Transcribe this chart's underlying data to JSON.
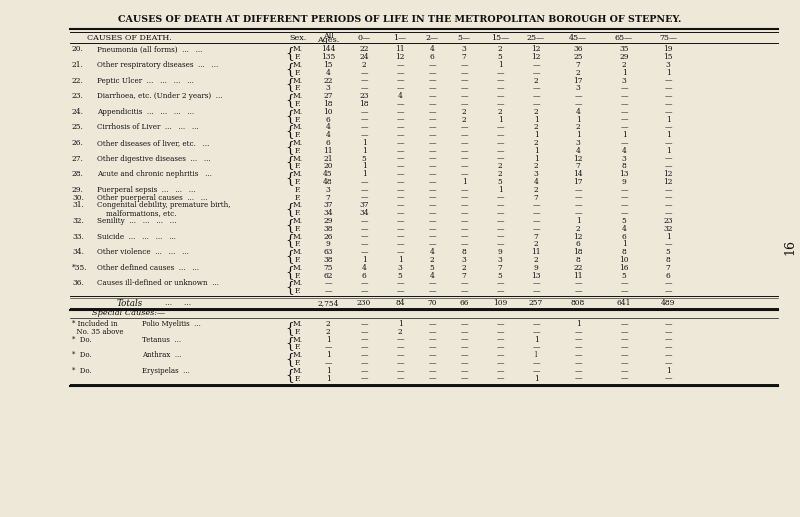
{
  "title": "CAUSES OF DEATH AT DIFFERENT PERIODS OF LIFE IN THE METROPOLITAN BOROUGH OF STEPNEY.",
  "bg_color": "#ede8d8",
  "text_color": "#111111",
  "page_num": "16",
  "rows": [
    {
      "num": "20.",
      "cause": "Pneumonia (all forms)  ...   ...",
      "brace": true,
      "sex": "M.",
      "vals": [
        "144",
        "22",
        "11",
        "4",
        "3",
        "2",
        "12",
        "36",
        "35",
        "19"
      ]
    },
    {
      "num": "",
      "cause": "",
      "brace": false,
      "sex": "F.",
      "vals": [
        "135",
        "24",
        "12",
        "6",
        "7",
        "5",
        "12",
        "25",
        "29",
        "15"
      ]
    },
    {
      "num": "21.",
      "cause": "Other respiratory diseases  ...   ...",
      "brace": true,
      "sex": "M.",
      "vals": [
        "15",
        "2",
        "—",
        "—",
        "—",
        "1",
        "—",
        "7",
        "2",
        "3"
      ]
    },
    {
      "num": "",
      "cause": "",
      "brace": false,
      "sex": "F.",
      "vals": [
        "4",
        "—",
        "—",
        "—",
        "—",
        "—",
        "—",
        "2",
        "1",
        "1"
      ]
    },
    {
      "num": "22.",
      "cause": "Peptic Ulcer  ...   ...   ...   ...",
      "brace": true,
      "sex": "M.",
      "vals": [
        "22",
        "—",
        "—",
        "—",
        "—",
        "—",
        "2",
        "17",
        "3",
        "—"
      ]
    },
    {
      "num": "",
      "cause": "",
      "brace": false,
      "sex": "F.",
      "vals": [
        "3",
        "—",
        "—",
        "—",
        "—",
        "—",
        "—",
        "3",
        "—",
        "—"
      ]
    },
    {
      "num": "23.",
      "cause": "Diarrhoea, etc. (Under 2 years)  ...",
      "brace": true,
      "sex": "M.",
      "vals": [
        "27",
        "23",
        "4",
        "—",
        "—",
        "—",
        "—",
        "—",
        "—",
        "—"
      ]
    },
    {
      "num": "",
      "cause": "",
      "brace": false,
      "sex": "F.",
      "vals": [
        "18",
        "18",
        "—",
        "—",
        "—",
        "—",
        "—",
        "—",
        "—",
        "—"
      ]
    },
    {
      "num": "24.",
      "cause": "Appendicitis  ...   ...   ...   ...",
      "brace": true,
      "sex": "M.",
      "vals": [
        "10",
        "—",
        "—",
        "—",
        "2",
        "2",
        "2",
        "4",
        "—",
        "—"
      ]
    },
    {
      "num": "",
      "cause": "",
      "brace": false,
      "sex": "F.",
      "vals": [
        "6",
        "—",
        "—",
        "—",
        "2",
        "1",
        "1",
        "1",
        "—",
        "1"
      ]
    },
    {
      "num": "25.",
      "cause": "Cirrhosis of Liver  ...   ...   ...",
      "brace": true,
      "sex": "M.",
      "vals": [
        "4",
        "—",
        "—",
        "—",
        "—",
        "—",
        "2",
        "2",
        "—",
        "—"
      ]
    },
    {
      "num": "",
      "cause": "",
      "brace": false,
      "sex": "F.",
      "vals": [
        "4",
        "—",
        "—",
        "—",
        "—",
        "—",
        "1",
        "1",
        "1",
        "1"
      ]
    },
    {
      "num": "26.",
      "cause": "Other diseases of liver, etc.   ...",
      "brace": true,
      "sex": "M.",
      "vals": [
        "6",
        "1",
        "—",
        "—",
        "—",
        "—",
        "2",
        "3",
        "—",
        "—"
      ]
    },
    {
      "num": "",
      "cause": "",
      "brace": false,
      "sex": "F.",
      "vals": [
        "11",
        "1",
        "—",
        "—",
        "—",
        "—",
        "1",
        "4",
        "4",
        "1"
      ]
    },
    {
      "num": "27.",
      "cause": "Other digestive diseases  ...   ...",
      "brace": true,
      "sex": "M.",
      "vals": [
        "21",
        "5",
        "—",
        "—",
        "—",
        "—",
        "1",
        "12",
        "3",
        "—"
      ]
    },
    {
      "num": "",
      "cause": "",
      "brace": false,
      "sex": "F.",
      "vals": [
        "20",
        "1",
        "—",
        "—",
        "—",
        "2",
        "2",
        "7",
        "8",
        "—"
      ]
    },
    {
      "num": "28.",
      "cause": "Acute and chronic nephritis   ...",
      "brace": true,
      "sex": "M.",
      "vals": [
        "45",
        "1",
        "—",
        "—",
        "—",
        "2",
        "3",
        "14",
        "13",
        "12"
      ]
    },
    {
      "num": "",
      "cause": "",
      "brace": false,
      "sex": "F.",
      "vals": [
        "48",
        "—",
        "—",
        "—",
        "1",
        "5",
        "4",
        "17",
        "9",
        "12"
      ]
    },
    {
      "num": "29.",
      "cause": "Puerperal sepsis  ...   ...   ...",
      "brace": false,
      "sex": "F.",
      "vals": [
        "3",
        "—",
        "—",
        "—",
        "—",
        "1",
        "2",
        "—",
        "—",
        "—"
      ]
    },
    {
      "num": "30.",
      "cause": "Other puerperal causes  ...   ...",
      "brace": false,
      "sex": "F.",
      "vals": [
        "7",
        "—",
        "—",
        "—",
        "—",
        "—",
        "7",
        "—",
        "—",
        "—"
      ]
    },
    {
      "num": "31.",
      "cause": "Congenital debility, premature birth,",
      "brace": true,
      "sex": "M.",
      "vals": [
        "37",
        "37",
        "—",
        "—",
        "—",
        "—",
        "—",
        "—",
        "—",
        "—"
      ]
    },
    {
      "num": "",
      "cause": "    malformations, etc.",
      "brace": false,
      "sex": "F.",
      "vals": [
        "34",
        "34",
        "—",
        "—",
        "—",
        "—",
        "—",
        "—",
        "—",
        "—"
      ]
    },
    {
      "num": "32.",
      "cause": "Senility  ...   ...   ...   ...",
      "brace": true,
      "sex": "M.",
      "vals": [
        "29",
        "—",
        "—",
        "—",
        "—",
        "—",
        "—",
        "1",
        "5",
        "23"
      ]
    },
    {
      "num": "",
      "cause": "",
      "brace": false,
      "sex": "F.",
      "vals": [
        "38",
        "—",
        "—",
        "—",
        "—",
        "—",
        "—",
        "2",
        "4",
        "32"
      ]
    },
    {
      "num": "33.",
      "cause": "Suicide  ...   ...   ...   ...",
      "brace": true,
      "sex": "M.",
      "vals": [
        "26",
        "—",
        "—",
        "—",
        "—",
        "—",
        "7",
        "12",
        "6",
        "1"
      ]
    },
    {
      "num": "",
      "cause": "",
      "brace": false,
      "sex": "F.",
      "vals": [
        "9",
        "—",
        "—",
        "—",
        "—",
        "—",
        "2",
        "6",
        "1",
        "—"
      ]
    },
    {
      "num": "34.",
      "cause": "Other violence  ...   ...   ...",
      "brace": true,
      "sex": "M.",
      "vals": [
        "63",
        "—",
        "—",
        "4",
        "8",
        "9",
        "11",
        "18",
        "8",
        "5"
      ]
    },
    {
      "num": "",
      "cause": "",
      "brace": false,
      "sex": "F.",
      "vals": [
        "38",
        "1",
        "1",
        "2",
        "3",
        "3",
        "2",
        "8",
        "10",
        "8"
      ]
    },
    {
      "num": "*35.",
      "cause": "Other defined causes  ...   ...",
      "brace": true,
      "sex": "M.",
      "vals": [
        "75",
        "4",
        "3",
        "5",
        "2",
        "7",
        "9",
        "22",
        "16",
        "7"
      ]
    },
    {
      "num": "",
      "cause": "",
      "brace": false,
      "sex": "F.",
      "vals": [
        "62",
        "6",
        "5",
        "4",
        "7",
        "5",
        "13",
        "11",
        "5",
        "6"
      ]
    },
    {
      "num": "36.",
      "cause": "Causes ill-defined or unknown  ...",
      "brace": true,
      "sex": "M.",
      "vals": [
        "—",
        "—",
        "—",
        "—",
        "—",
        "—",
        "—",
        "—",
        "—",
        "—"
      ]
    },
    {
      "num": "",
      "cause": "",
      "brace": false,
      "sex": "F.",
      "vals": [
        "—",
        "—",
        "—",
        "—",
        "—",
        "—",
        "—",
        "—",
        "—",
        "—"
      ]
    }
  ],
  "totals_label": "Totals",
  "totals_dots": "...     ...",
  "totals": [
    "2,754",
    "230",
    "84",
    "70",
    "66",
    "109",
    "257",
    "808",
    "641",
    "489"
  ],
  "special_header": "Special Causes:—",
  "special_rows": [
    {
      "l1": "* Included in",
      "l2": "Polio Myelitis  ...",
      "brace": true,
      "sex": "M.",
      "vals": [
        "2",
        "—",
        "1",
        "—",
        "—",
        "—",
        "—",
        "1",
        "—",
        "—"
      ]
    },
    {
      "l1": "  No. 35 above",
      "l2": "",
      "brace": false,
      "sex": "F.",
      "vals": [
        "2",
        "—",
        "2",
        "—",
        "—",
        "—",
        "—",
        "—",
        "—",
        "—"
      ]
    },
    {
      "l1": "*  Do.",
      "l2": "Tetanus  ...",
      "brace": true,
      "sex": "M.",
      "vals": [
        "1",
        "—",
        "—",
        "—",
        "—",
        "—",
        "1",
        "—",
        "—",
        "—"
      ]
    },
    {
      "l1": "",
      "l2": "",
      "brace": false,
      "sex": "F.",
      "vals": [
        "—",
        "—",
        "—",
        "—",
        "—",
        "—",
        "—",
        "—",
        "—",
        "—"
      ]
    },
    {
      "l1": "*  Do.",
      "l2": "Anthrax  ...",
      "brace": true,
      "sex": "M.",
      "vals": [
        "1",
        "—",
        "—",
        "—",
        "—",
        "—",
        "l",
        "—",
        "—",
        "—"
      ]
    },
    {
      "l1": "",
      "l2": "",
      "brace": false,
      "sex": "F.",
      "vals": [
        "—",
        "—",
        "—",
        "—",
        "—",
        "—",
        "—",
        "—",
        "—",
        "—"
      ]
    },
    {
      "l1": "*  Do.",
      "l2": "Erysipelas  ...",
      "brace": true,
      "sex": "M.",
      "vals": [
        "1",
        "—",
        "—",
        "—",
        "—",
        "—",
        "—",
        "—",
        "—",
        "1"
      ]
    },
    {
      "l1": "",
      "l2": "",
      "brace": false,
      "sex": "F.",
      "vals": [
        "1",
        "—",
        "—",
        "—",
        "—",
        "—",
        "1",
        "—",
        "—",
        "—"
      ]
    }
  ]
}
